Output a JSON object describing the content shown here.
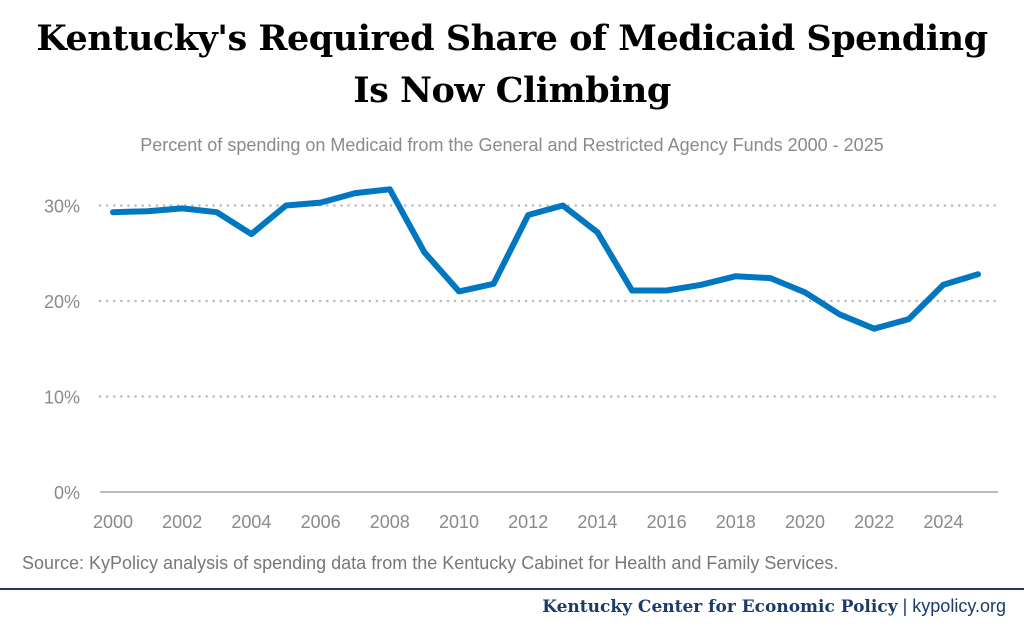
{
  "title_line1": "Kentucky's Required Share of Medicaid Spending",
  "title_line2": "Is Now Climbing",
  "subtitle": "Percent of spending on Medicaid from the General and Restricted Agency Funds 2000 - 2025",
  "source": "Source: KyPolicy analysis of spending data from the Kentucky Cabinet for Health and Family Services.",
  "footer": {
    "org": "Kentucky Center for Economic Policy",
    "separator": "|",
    "site": "kypolicy.org"
  },
  "colors": {
    "line": "#0077c0",
    "footer": "#1c3a6b",
    "grid": "#bbbbbb"
  },
  "chart_data": {
    "type": "line",
    "title": "Kentucky's Required Share of Medicaid Spending Is Now Climbing",
    "subtitle": "Percent of spending on Medicaid from the General and Restricted Agency Funds 2000 - 2025",
    "x": [
      2000,
      2001,
      2002,
      2003,
      2004,
      2005,
      2006,
      2007,
      2008,
      2009,
      2010,
      2011,
      2012,
      2013,
      2014,
      2015,
      2016,
      2017,
      2018,
      2019,
      2020,
      2021,
      2022,
      2023,
      2024,
      2025
    ],
    "values": [
      29.3,
      29.4,
      29.7,
      29.3,
      27.0,
      30.0,
      30.3,
      31.3,
      31.7,
      25.1,
      21.0,
      21.8,
      29.0,
      30.0,
      27.2,
      21.1,
      21.1,
      21.7,
      22.6,
      22.4,
      20.9,
      18.6,
      17.1,
      18.1,
      21.7,
      22.8
    ],
    "unit": "%",
    "xlim": [
      2000,
      2025
    ],
    "ylim": [
      0,
      30
    ],
    "xticks": [
      "2000",
      "2002",
      "2004",
      "2006",
      "2008",
      "2010",
      "2012",
      "2014",
      "2016",
      "2018",
      "2020",
      "2022",
      "2024"
    ],
    "yticks": [
      "0%",
      "10%",
      "20%",
      "30%"
    ],
    "grid": "horizontal dotted",
    "legend": "none"
  }
}
